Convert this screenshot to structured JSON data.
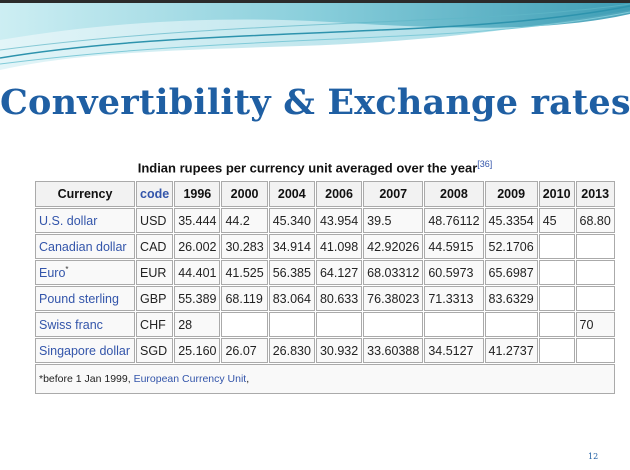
{
  "slide": {
    "title": "Convertibility & Exchange rates",
    "page_number": "12"
  },
  "table": {
    "caption": "Indian rupees per currency unit averaged over the year",
    "caption_ref": "[36]",
    "headers": [
      "Currency",
      "code",
      "1996",
      "2000",
      "2004",
      "2006",
      "2007",
      "2008",
      "2009",
      "2010",
      "2013"
    ],
    "rows": [
      {
        "name": "U.S. dollar",
        "marker": "",
        "code": "USD",
        "values": [
          "35.444",
          "44.2",
          "45.340",
          "43.954",
          "39.5",
          "48.76112",
          "45.3354",
          "45",
          "68.80"
        ]
      },
      {
        "name": "Canadian dollar",
        "marker": "",
        "code": "CAD",
        "values": [
          "26.002",
          "30.283",
          "34.914",
          "41.098",
          "42.92026",
          "44.5915",
          "52.1706",
          "",
          ""
        ]
      },
      {
        "name": "Euro",
        "marker": "*",
        "code": "EUR",
        "values": [
          "44.401",
          "41.525",
          "56.385",
          "64.127",
          "68.03312",
          "60.5973",
          "65.6987",
          "",
          ""
        ]
      },
      {
        "name": "Pound sterling",
        "marker": "",
        "code": "GBP",
        "values": [
          "55.389",
          "68.119",
          "83.064",
          "80.633",
          "76.38023",
          "71.3313",
          "83.6329",
          "",
          ""
        ]
      },
      {
        "name": "Swiss franc",
        "marker": "",
        "code": "CHF",
        "values": [
          "28",
          "",
          "",
          "",
          "",
          "",
          "",
          "",
          "70"
        ]
      },
      {
        "name": "Singapore dollar",
        "marker": "",
        "code": "SGD",
        "values": [
          "25.160",
          "26.07",
          "26.830",
          "30.932",
          "33.60388",
          "34.5127",
          "41.2737",
          "",
          ""
        ]
      }
    ],
    "footnote_text": "*before 1 Jan 1999, ",
    "footnote_link": "European Currency Unit",
    "footnote_tail": ","
  },
  "colors": {
    "title": "#1f5fa3",
    "link": "#3355aa",
    "wave_dark": "#2d93ad",
    "wave_light": "#a9dde6"
  }
}
